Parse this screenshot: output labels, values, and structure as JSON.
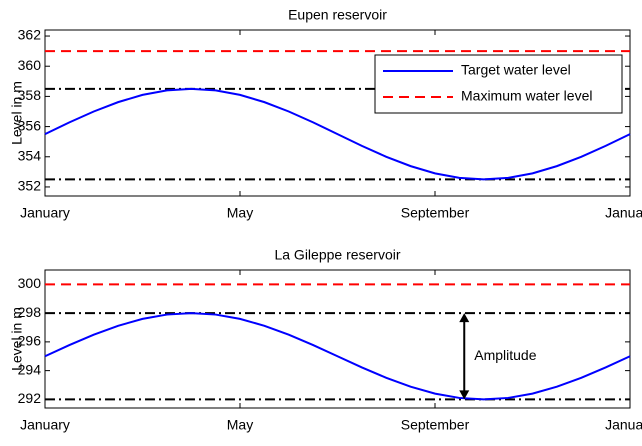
{
  "chart_data": [
    {
      "type": "line",
      "title": "Eupen reservoir",
      "y_label": "Level in m",
      "x": [
        0,
        0.5,
        1,
        1.5,
        2,
        2.5,
        3,
        3.5,
        4,
        4.5,
        5,
        5.5,
        6,
        6.5,
        7,
        7.5,
        8,
        8.5,
        9,
        9.5,
        10,
        10.5,
        11,
        11.5,
        12
      ],
      "xlim": [
        0,
        12
      ],
      "xticks": [
        {
          "value": 0,
          "label": "January"
        },
        {
          "value": 4,
          "label": "May"
        },
        {
          "value": 8,
          "label": "September"
        },
        {
          "value": 12,
          "label": "January"
        }
      ],
      "ylim": [
        351.4,
        362.4
      ],
      "yticks": [
        352,
        354,
        356,
        358,
        360,
        362
      ],
      "series": [
        {
          "name": "Target water level",
          "color": "#0000ff",
          "values": [
            355.5,
            356.28,
            357.0,
            357.62,
            358.1,
            358.4,
            358.5,
            358.4,
            358.1,
            357.62,
            357.0,
            356.28,
            355.5,
            354.72,
            354.0,
            353.38,
            352.9,
            352.6,
            352.5,
            352.6,
            352.9,
            353.38,
            354.0,
            354.72,
            355.5
          ]
        }
      ],
      "reference_lines": [
        {
          "name": "Maximum water level",
          "value": 361,
          "color": "#ff0000",
          "style": "dashed"
        },
        {
          "value": 358.5,
          "color": "#000000",
          "style": "dashdot"
        },
        {
          "value": 352.5,
          "color": "#000000",
          "style": "dashdot"
        }
      ],
      "legend": "upper right"
    },
    {
      "type": "line",
      "title": "La Gileppe reservoir",
      "y_label": "Level in m",
      "x": [
        0,
        0.5,
        1,
        1.5,
        2,
        2.5,
        3,
        3.5,
        4,
        4.5,
        5,
        5.5,
        6,
        6.5,
        7,
        7.5,
        8,
        8.5,
        9,
        9.5,
        10,
        10.5,
        11,
        11.5,
        12
      ],
      "xlim": [
        0,
        12
      ],
      "xticks": [
        {
          "value": 0,
          "label": "January"
        },
        {
          "value": 4,
          "label": "May"
        },
        {
          "value": 8,
          "label": "September"
        },
        {
          "value": 12,
          "label": "January"
        }
      ],
      "ylim": [
        291.4,
        301
      ],
      "yticks": [
        292,
        294,
        296,
        298,
        300
      ],
      "series": [
        {
          "color": "#0000ff",
          "values": [
            295,
            295.78,
            296.5,
            297.12,
            297.6,
            297.9,
            298,
            297.9,
            297.6,
            297.12,
            296.5,
            295.78,
            295,
            294.22,
            293.5,
            292.88,
            292.4,
            292.1,
            292,
            292.1,
            292.4,
            292.88,
            293.5,
            294.22,
            295
          ]
        }
      ],
      "reference_lines": [
        {
          "value": 300,
          "color": "#ff0000",
          "style": "dashed"
        },
        {
          "value": 298,
          "color": "#000000",
          "style": "dashdot"
        },
        {
          "value": 292,
          "color": "#000000",
          "style": "dashdot"
        }
      ],
      "annotation": {
        "text": "Amplitude",
        "x": 8.6,
        "from": 292,
        "to": 298
      }
    }
  ]
}
